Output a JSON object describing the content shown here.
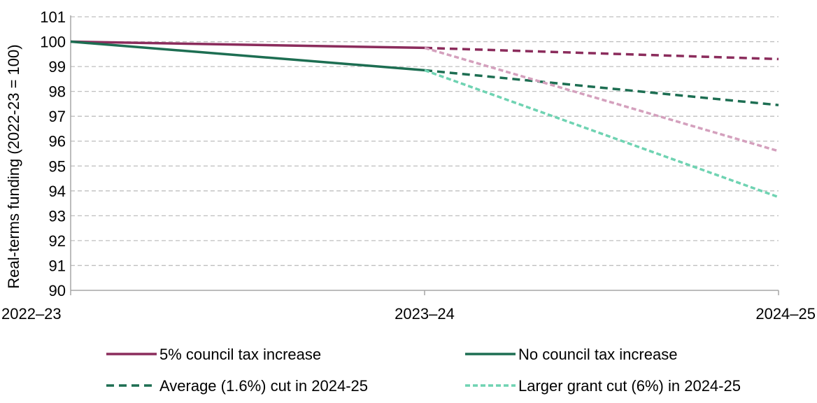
{
  "chart_data": {
    "type": "line",
    "title": "",
    "xlabel": "",
    "ylabel": "Real-terms funding (2022-23 = 100)",
    "categories": [
      "2022–23",
      "2023–24",
      "2024–25"
    ],
    "ylim": [
      90,
      101
    ],
    "yticks": [
      90,
      91,
      92,
      93,
      94,
      95,
      96,
      97,
      98,
      99,
      100,
      101
    ],
    "grid": true,
    "legend_position": "bottom",
    "series": [
      {
        "name": "5% council tax increase",
        "color": "#8b2c5c",
        "style": "solid",
        "values": [
          100,
          99.75,
          null
        ]
      },
      {
        "name": "No council tax increase",
        "color": "#1d6e52",
        "style": "solid",
        "values": [
          100,
          98.85,
          null
        ]
      },
      {
        "name": "Average (1.6%) cut in 2024-25",
        "color": "#1d6e52",
        "style": "dashed",
        "values": [
          null,
          98.85,
          97.45
        ],
        "extra_projections": [
          {
            "color": "#8b2c5c",
            "values": [
              null,
              99.75,
              99.3
            ]
          }
        ]
      },
      {
        "name": "Larger grant cut (6%) in 2024-25",
        "color": "#6fd3b2",
        "style": "dotted",
        "values": [
          null,
          98.85,
          93.75
        ],
        "extra_projections": [
          {
            "color": "#d4a0bd",
            "values": [
              null,
              99.75,
              95.6
            ]
          }
        ]
      }
    ]
  }
}
